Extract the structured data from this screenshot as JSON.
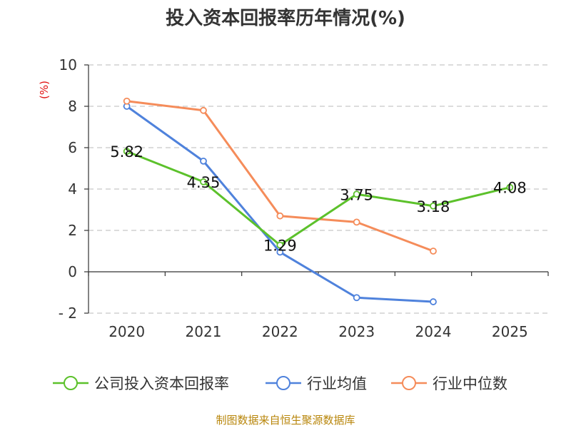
{
  "chart_data": {
    "type": "line",
    "title": "投入资本回报率历年情况(%)",
    "ylabel": "(%)",
    "xlabel": "",
    "categories": [
      "2020",
      "2021",
      "2022",
      "2023",
      "2024",
      "2025"
    ],
    "yticks": [
      -2,
      0,
      2,
      4,
      6,
      8,
      10
    ],
    "ylim": [
      -2,
      10
    ],
    "grid": true,
    "legend_position": "bottom",
    "series": [
      {
        "name": "公司投入资本回报率",
        "color": "#5cc12b",
        "values": [
          5.82,
          4.35,
          1.29,
          3.75,
          3.18,
          4.08
        ],
        "labels": [
          "5.82",
          "4.35",
          "1.29",
          "3.75",
          "3.18",
          "4.08"
        ]
      },
      {
        "name": "行业均值",
        "color": "#4f82dc",
        "values": [
          8.0,
          5.35,
          0.95,
          -1.25,
          -1.45,
          null
        ]
      },
      {
        "name": "行业中位数",
        "color": "#f58c5a",
        "values": [
          8.25,
          7.8,
          2.7,
          2.4,
          1.0,
          null
        ]
      }
    ]
  },
  "source": "制图数据来自恒生聚源数据库"
}
